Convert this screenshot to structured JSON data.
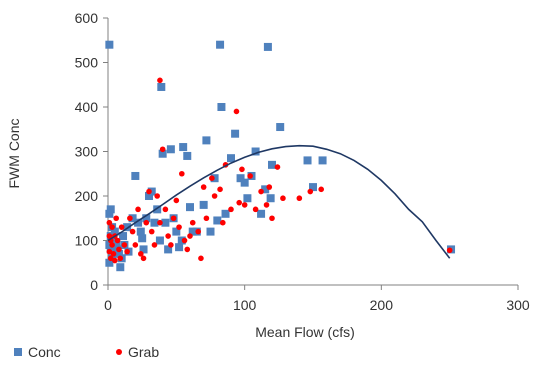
{
  "chart_data": {
    "type": "scatter",
    "xlabel": "Mean Flow (cfs)",
    "ylabel": "FWM Conc",
    "xlim": [
      0,
      300
    ],
    "ylim": [
      0,
      600
    ],
    "xticks": [
      "0",
      "100",
      "200",
      "300"
    ],
    "yticks": [
      "0",
      "100",
      "200",
      "300",
      "400",
      "500",
      "600"
    ],
    "grid": false,
    "legend": "bottom-left",
    "series": [
      {
        "name": "Conc",
        "marker": "square",
        "color": "#4f81bd",
        "points": [
          [
            1,
            540
          ],
          [
            2,
            170
          ],
          [
            1,
            160
          ],
          [
            3,
            130
          ],
          [
            2,
            110
          ],
          [
            4,
            100
          ],
          [
            1,
            90
          ],
          [
            2,
            80
          ],
          [
            3,
            60
          ],
          [
            1,
            50
          ],
          [
            5,
            120
          ],
          [
            6,
            95
          ],
          [
            7,
            80
          ],
          [
            8,
            70
          ],
          [
            9,
            40
          ],
          [
            10,
            60
          ],
          [
            11,
            110
          ],
          [
            12,
            90
          ],
          [
            14,
            130
          ],
          [
            15,
            75
          ],
          [
            18,
            150
          ],
          [
            20,
            245
          ],
          [
            22,
            140
          ],
          [
            24,
            120
          ],
          [
            25,
            105
          ],
          [
            26,
            80
          ],
          [
            28,
            150
          ],
          [
            30,
            200
          ],
          [
            32,
            210
          ],
          [
            34,
            140
          ],
          [
            36,
            170
          ],
          [
            38,
            100
          ],
          [
            39,
            445
          ],
          [
            40,
            295
          ],
          [
            42,
            140
          ],
          [
            44,
            80
          ],
          [
            46,
            305
          ],
          [
            48,
            150
          ],
          [
            50,
            120
          ],
          [
            52,
            85
          ],
          [
            54,
            100
          ],
          [
            55,
            310
          ],
          [
            58,
            290
          ],
          [
            60,
            175
          ],
          [
            62,
            120
          ],
          [
            65,
            120
          ],
          [
            70,
            180
          ],
          [
            72,
            325
          ],
          [
            75,
            120
          ],
          [
            78,
            240
          ],
          [
            80,
            145
          ],
          [
            82,
            540
          ],
          [
            83,
            400
          ],
          [
            86,
            160
          ],
          [
            90,
            285
          ],
          [
            93,
            340
          ],
          [
            97,
            240
          ],
          [
            100,
            230
          ],
          [
            102,
            195
          ],
          [
            105,
            245
          ],
          [
            108,
            300
          ],
          [
            112,
            160
          ],
          [
            115,
            215
          ],
          [
            117,
            535
          ],
          [
            119,
            195
          ],
          [
            120,
            270
          ],
          [
            126,
            355
          ],
          [
            146,
            280
          ],
          [
            150,
            220
          ],
          [
            157,
            280
          ],
          [
            251,
            80
          ]
        ]
      },
      {
        "name": "Grab",
        "marker": "circle",
        "color": "#ff0000",
        "points": [
          [
            1,
            140
          ],
          [
            1,
            110
          ],
          [
            2,
            100
          ],
          [
            1,
            75
          ],
          [
            2,
            60
          ],
          [
            3,
            130
          ],
          [
            3,
            90
          ],
          [
            4,
            70
          ],
          [
            5,
            110
          ],
          [
            5,
            55
          ],
          [
            6,
            150
          ],
          [
            7,
            100
          ],
          [
            8,
            80
          ],
          [
            9,
            60
          ],
          [
            10,
            130
          ],
          [
            12,
            90
          ],
          [
            14,
            75
          ],
          [
            16,
            150
          ],
          [
            18,
            120
          ],
          [
            20,
            90
          ],
          [
            22,
            170
          ],
          [
            24,
            70
          ],
          [
            26,
            60
          ],
          [
            28,
            140
          ],
          [
            30,
            210
          ],
          [
            32,
            120
          ],
          [
            34,
            90
          ],
          [
            36,
            200
          ],
          [
            38,
            140
          ],
          [
            38,
            460
          ],
          [
            40,
            305
          ],
          [
            42,
            170
          ],
          [
            44,
            110
          ],
          [
            46,
            90
          ],
          [
            48,
            150
          ],
          [
            50,
            190
          ],
          [
            52,
            130
          ],
          [
            54,
            250
          ],
          [
            56,
            100
          ],
          [
            58,
            80
          ],
          [
            60,
            110
          ],
          [
            62,
            140
          ],
          [
            66,
            120
          ],
          [
            68,
            60
          ],
          [
            70,
            220
          ],
          [
            72,
            150
          ],
          [
            76,
            240
          ],
          [
            78,
            200
          ],
          [
            82,
            215
          ],
          [
            84,
            140
          ],
          [
            86,
            270
          ],
          [
            90,
            170
          ],
          [
            94,
            390
          ],
          [
            96,
            185
          ],
          [
            98,
            260
          ],
          [
            100,
            180
          ],
          [
            104,
            245
          ],
          [
            108,
            170
          ],
          [
            112,
            210
          ],
          [
            116,
            180
          ],
          [
            118,
            220
          ],
          [
            120,
            150
          ],
          [
            124,
            265
          ],
          [
            128,
            195
          ],
          [
            140,
            195
          ],
          [
            148,
            210
          ],
          [
            156,
            215
          ],
          [
            250,
            78
          ]
        ]
      },
      {
        "name": "",
        "type": "line",
        "color": "#1f3864",
        "points": [
          [
            0,
            100
          ],
          [
            10,
            119
          ],
          [
            20,
            140
          ],
          [
            30,
            160
          ],
          [
            40,
            181
          ],
          [
            50,
            202
          ],
          [
            60,
            222
          ],
          [
            70,
            241
          ],
          [
            80,
            258
          ],
          [
            90,
            274
          ],
          [
            100,
            287
          ],
          [
            110,
            298
          ],
          [
            120,
            306
          ],
          [
            130,
            311
          ],
          [
            140,
            313
          ],
          [
            150,
            312
          ],
          [
            160,
            305
          ],
          [
            170,
            295
          ],
          [
            180,
            280
          ],
          [
            190,
            260
          ],
          [
            200,
            235
          ],
          [
            210,
            205
          ],
          [
            220,
            170
          ],
          [
            230,
            142
          ],
          [
            240,
            100
          ],
          [
            250,
            60
          ]
        ]
      }
    ]
  }
}
